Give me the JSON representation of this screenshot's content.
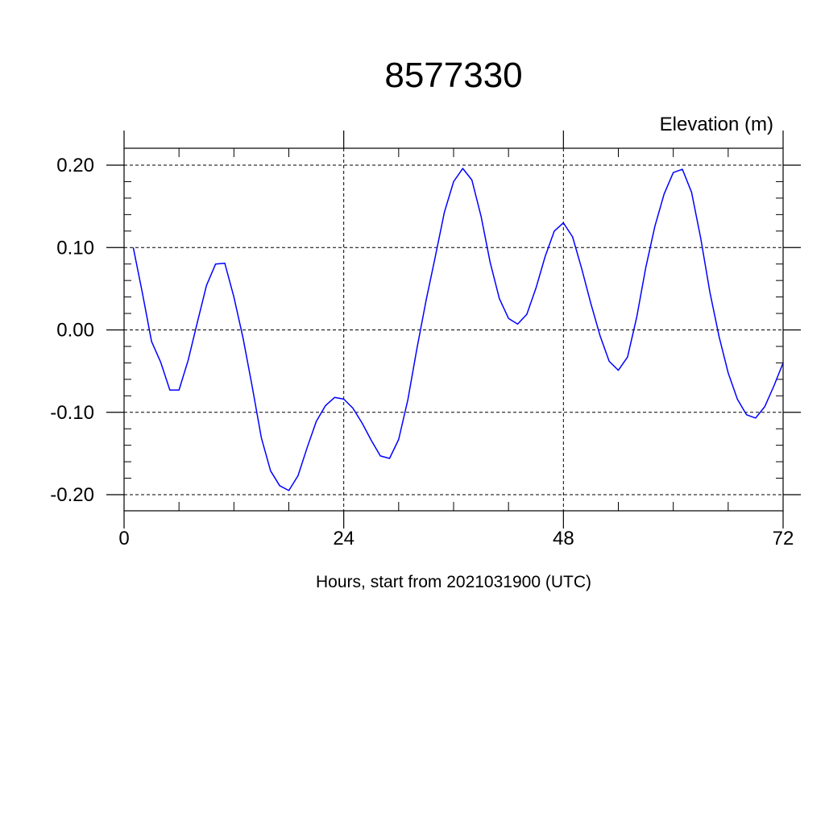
{
  "chart_data": {
    "type": "line",
    "title": "8577330",
    "ylabel": "Elevation (m)",
    "xlabel": "Hours, start from 2021031900 (UTC)",
    "xlim": [
      0,
      72
    ],
    "ylim": [
      -0.2,
      0.2
    ],
    "x_ticks": [
      0,
      24,
      48,
      72
    ],
    "x_tick_labels": [
      "0",
      "24",
      "48",
      "72"
    ],
    "y_ticks": [
      -0.2,
      -0.1,
      0.0,
      0.1,
      0.2
    ],
    "y_tick_labels": [
      "-0.20",
      "-0.10",
      "0.00",
      "0.10",
      "0.20"
    ],
    "grid": true,
    "series": [
      {
        "color": "#0000ff",
        "x": [
          1,
          2,
          3,
          4,
          5,
          6,
          7,
          8,
          9,
          10,
          11,
          12,
          13,
          14,
          15,
          16,
          17,
          18,
          19,
          20,
          21,
          22,
          23,
          24,
          25,
          26,
          27,
          28,
          29,
          30,
          31,
          32,
          33,
          34,
          35,
          36,
          37,
          38,
          39,
          40,
          41,
          42,
          43,
          44,
          45,
          46,
          47,
          48,
          49,
          50,
          51,
          52,
          53,
          54,
          55,
          56,
          57,
          58,
          59,
          60,
          61,
          62,
          63,
          64,
          65,
          66,
          67,
          68,
          69,
          70,
          71,
          72
        ],
        "y": [
          0.1,
          0.045,
          -0.014,
          -0.039,
          -0.073,
          -0.073,
          -0.037,
          0.009,
          0.054,
          0.08,
          0.081,
          0.04,
          -0.01,
          -0.069,
          -0.131,
          -0.171,
          -0.189,
          -0.195,
          -0.177,
          -0.143,
          -0.111,
          -0.092,
          -0.082,
          -0.084,
          -0.095,
          -0.113,
          -0.134,
          -0.153,
          -0.156,
          -0.133,
          -0.085,
          -0.022,
          0.036,
          0.089,
          0.143,
          0.18,
          0.196,
          0.182,
          0.138,
          0.082,
          0.038,
          0.014,
          0.007,
          0.019,
          0.051,
          0.089,
          0.12,
          0.13,
          0.113,
          0.074,
          0.032,
          -0.007,
          -0.038,
          -0.049,
          -0.033,
          0.015,
          0.076,
          0.126,
          0.165,
          0.191,
          0.195,
          0.167,
          0.111,
          0.046,
          -0.008,
          -0.052,
          -0.084,
          -0.103,
          -0.107,
          -0.093,
          -0.068,
          -0.04
        ]
      }
    ]
  }
}
